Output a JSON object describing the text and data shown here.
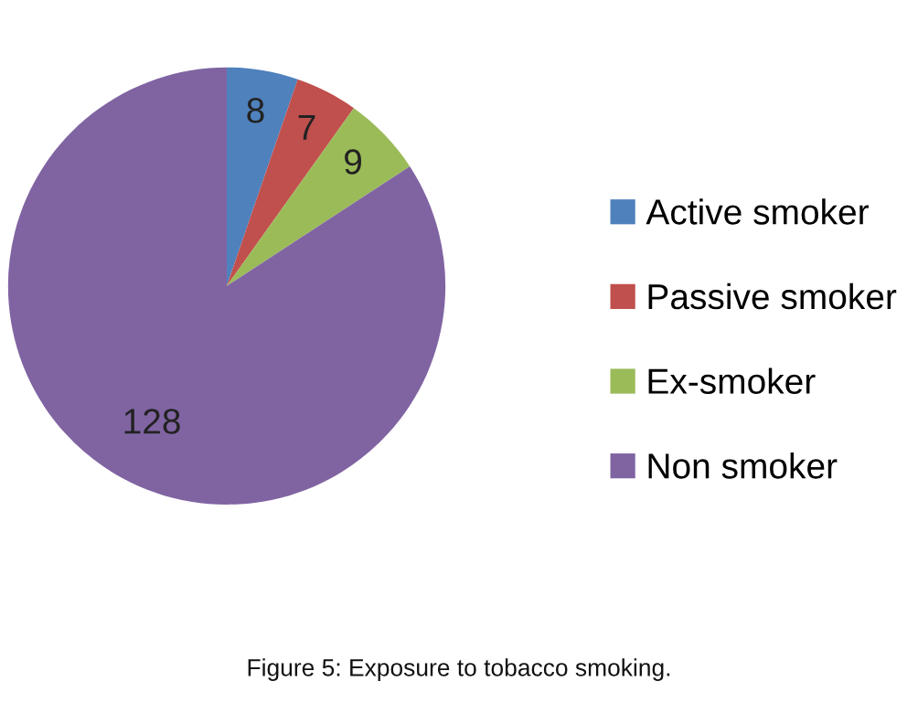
{
  "chart_data": {
    "type": "pie",
    "categories": [
      "Active smoker",
      "Passive smoker",
      "Ex-smoker",
      "Non smoker"
    ],
    "values": [
      8,
      7,
      9,
      128
    ],
    "colors": [
      "#4f81bd",
      "#c0504d",
      "#9bbb59",
      "#8064a2"
    ],
    "data_labels": true,
    "legend": "right",
    "annotations": [
      "Figure 5: Exposure to tobacco smoking."
    ]
  }
}
